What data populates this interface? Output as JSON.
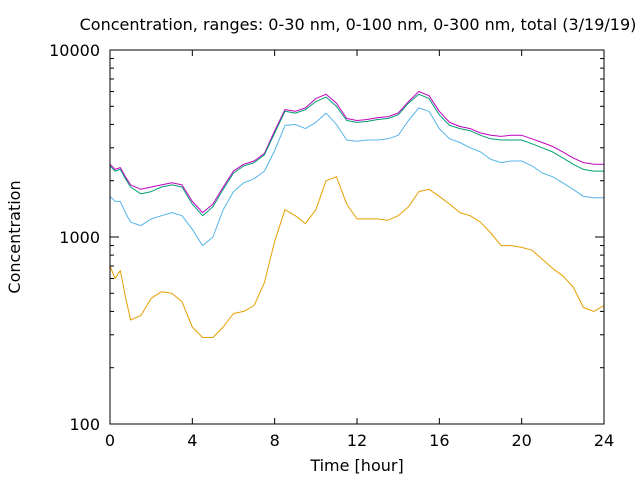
{
  "chart_data": {
    "type": "line",
    "title": "Concentration, ranges: 0-30 nm, 0-100 nm, 0-300 nm, total (3/19/19)",
    "xlabel": "Time [hour]",
    "ylabel": "Concentration",
    "xlim": [
      0,
      24
    ],
    "ylim": [
      100,
      10000
    ],
    "yscale": "log",
    "grid": false,
    "legend": "none",
    "x_ticks": [
      "0",
      "4",
      "8",
      "12",
      "16",
      "20",
      "24"
    ],
    "y_ticks": [
      "100",
      "1000",
      "10000"
    ],
    "x": [
      0,
      0.25,
      0.5,
      0.75,
      1,
      1.5,
      2,
      2.5,
      3,
      3.5,
      4,
      4.5,
      5,
      5.5,
      6,
      6.5,
      7,
      7.5,
      8,
      8.5,
      9,
      9.5,
      10,
      10.5,
      11,
      11.5,
      12,
      12.5,
      13,
      13.5,
      14,
      14.5,
      15,
      15.5,
      16,
      16.5,
      17,
      17.5,
      18,
      18.5,
      19,
      19.5,
      20,
      20.5,
      21,
      21.5,
      22,
      22.5,
      23,
      23.5,
      24
    ],
    "series": [
      {
        "color": "#c000c0",
        "values": [
          2450,
          2300,
          2350,
          2100,
          1900,
          1800,
          1850,
          1900,
          1950,
          1900,
          1550,
          1350,
          1500,
          1850,
          2250,
          2450,
          2550,
          2800,
          3700,
          4800,
          4700,
          4900,
          5500,
          5800,
          5200,
          4300,
          4200,
          4250,
          4350,
          4400,
          4600,
          5300,
          6000,
          5700,
          4700,
          4100,
          3900,
          3800,
          3600,
          3500,
          3450,
          3500,
          3500,
          3350,
          3200,
          3050,
          2850,
          2650,
          2500,
          2450,
          2450
        ]
      },
      {
        "color": "#009e73",
        "values": [
          2400,
          2250,
          2300,
          2050,
          1850,
          1700,
          1750,
          1850,
          1900,
          1850,
          1500,
          1300,
          1450,
          1800,
          2200,
          2400,
          2500,
          2750,
          3600,
          4700,
          4600,
          4800,
          5300,
          5600,
          5000,
          4200,
          4100,
          4150,
          4250,
          4300,
          4500,
          5200,
          5800,
          5500,
          4500,
          3950,
          3800,
          3700,
          3500,
          3350,
          3300,
          3300,
          3300,
          3150,
          3000,
          2850,
          2650,
          2450,
          2300,
          2250,
          2250
        ]
      },
      {
        "color": "#56b4e9",
        "values": [
          1650,
          1550,
          1550,
          1350,
          1200,
          1150,
          1250,
          1300,
          1350,
          1300,
          1100,
          900,
          1000,
          1400,
          1750,
          1950,
          2050,
          2250,
          2900,
          3950,
          4000,
          3800,
          4100,
          4600,
          4000,
          3300,
          3250,
          3300,
          3300,
          3350,
          3500,
          4200,
          4900,
          4700,
          3800,
          3350,
          3200,
          3000,
          2850,
          2600,
          2500,
          2550,
          2550,
          2400,
          2200,
          2100,
          1950,
          1800,
          1650,
          1620,
          1620
        ]
      },
      {
        "color": "#e69f00",
        "values": [
          700,
          600,
          660,
          480,
          360,
          380,
          470,
          510,
          500,
          450,
          330,
          290,
          290,
          330,
          390,
          400,
          430,
          570,
          950,
          1400,
          1300,
          1180,
          1400,
          2000,
          2100,
          1500,
          1250,
          1250,
          1250,
          1230,
          1300,
          1450,
          1750,
          1800,
          1650,
          1500,
          1350,
          1300,
          1200,
          1050,
          900,
          900,
          880,
          850,
          760,
          680,
          620,
          540,
          420,
          400,
          430
        ]
      }
    ]
  }
}
